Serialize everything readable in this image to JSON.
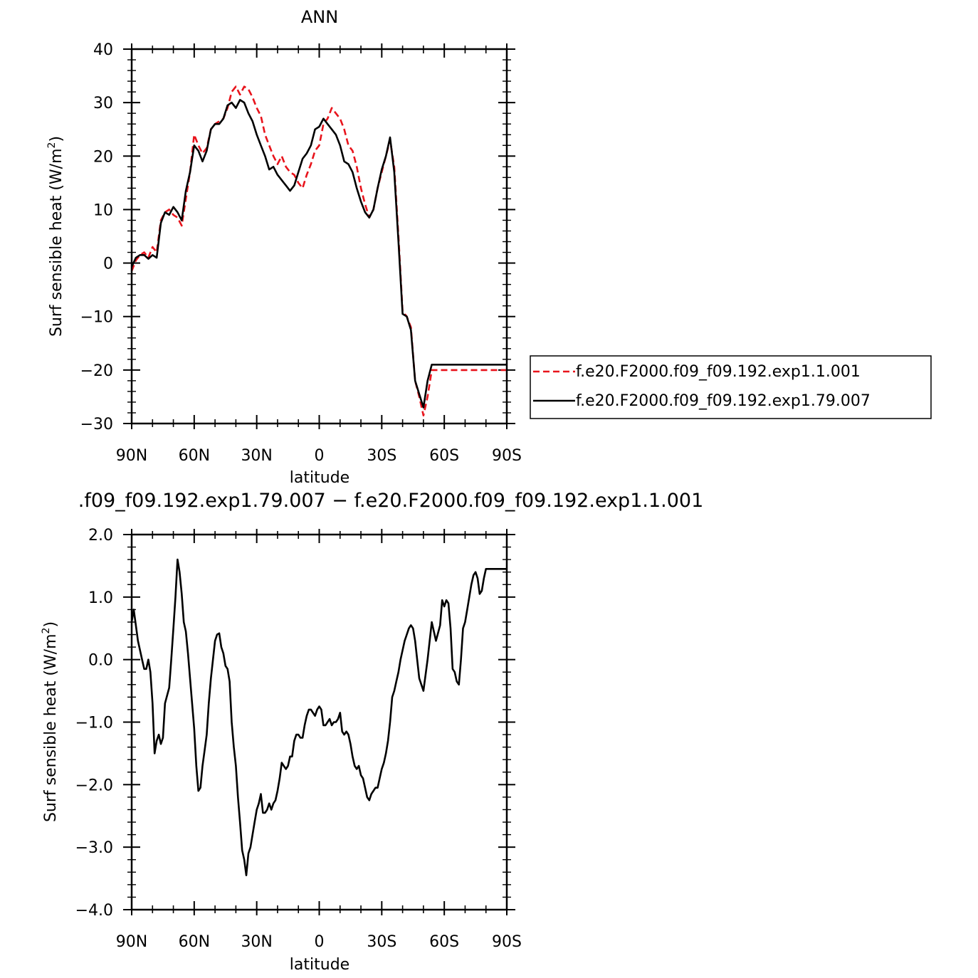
{
  "chart_data": [
    {
      "type": "line",
      "title": "ANN",
      "xlabel": "latitude",
      "ylabel": "Surf sensible heat (W/m²)",
      "ylabel_main": "Surf sensible heat (W/m",
      "ylabel_sup": "2",
      "ylabel_close": ")",
      "xlim": [
        90,
        -90
      ],
      "ylim": [
        -30,
        40
      ],
      "x_ticks": [
        90,
        60,
        30,
        0,
        -30,
        -60,
        -90
      ],
      "x_tick_labels": [
        "90N",
        "60N",
        "30N",
        "0",
        "30S",
        "60S",
        "90S"
      ],
      "y_ticks": [
        -30,
        -20,
        -10,
        0,
        10,
        20,
        30,
        40
      ],
      "y_tick_labels": [
        "−30",
        "−20",
        "−10",
        "0",
        "10",
        "20",
        "30",
        "40"
      ],
      "legend_position": "right",
      "series": [
        {
          "name": "f.e20.F2000.f09_f09.192.exp1.1.001",
          "color": "#e8141c",
          "dash": "dashed",
          "x": [
            90,
            88,
            86,
            84,
            82,
            80,
            78,
            76,
            74,
            72,
            70,
            68,
            66,
            64,
            62,
            60,
            58,
            56,
            54,
            52,
            50,
            48,
            46,
            44,
            42,
            40,
            38,
            36,
            34,
            32,
            30,
            28,
            26,
            24,
            22,
            20,
            18,
            16,
            14,
            12,
            10,
            8,
            6,
            4,
            2,
            0,
            -2,
            -4,
            -6,
            -8,
            -10,
            -12,
            -14,
            -16,
            -18,
            -20,
            -22,
            -24,
            -26,
            -28,
            -30,
            -32,
            -34,
            -36,
            -38,
            -40,
            -42,
            -44,
            -46,
            -48,
            -50,
            -52,
            -54,
            -56,
            -58,
            -60,
            -62,
            -64,
            -66,
            -68,
            -70,
            -72,
            -74,
            -76,
            -78,
            -80,
            -82,
            -84,
            -86,
            -88,
            -90
          ],
          "y": [
            -1.5,
            0.5,
            1.5,
            2.0,
            1.0,
            3.0,
            2.0,
            8.0,
            9.5,
            10.0,
            9.0,
            8.5,
            7.0,
            12.0,
            17.0,
            24.0,
            22.0,
            20.5,
            21.5,
            25.0,
            26.0,
            26.5,
            27.0,
            29.0,
            32.0,
            33.0,
            31.5,
            33.0,
            32.5,
            31.0,
            29.0,
            27.5,
            24.0,
            22.0,
            20.0,
            18.5,
            20.0,
            18.0,
            17.0,
            16.5,
            15.0,
            14.0,
            16.5,
            18.5,
            21.0,
            22.0,
            26.0,
            27.0,
            29.0,
            28.0,
            27.0,
            25.0,
            22.0,
            21.0,
            18.0,
            14.0,
            11.0,
            8.5,
            10.0,
            14.0,
            17.0,
            20.0,
            23.0,
            18.0,
            5.0,
            -9.0,
            -10.0,
            -12.0,
            -22.0,
            -25.0,
            -28.5,
            -25.0,
            -20.0,
            -20.0,
            -20.0,
            -20.0,
            -20.0,
            -20.0,
            -20.0,
            -20.0,
            -20.0,
            -20.0,
            -20.0,
            -20.0,
            -20.0,
            -20.0,
            -20.0,
            -20.0,
            -20.0,
            -20.0,
            -20.0
          ]
        },
        {
          "name": "f.e20.F2000.f09_f09.192.exp1.79.007",
          "color": "#000000",
          "dash": "solid",
          "x": [
            90,
            88,
            86,
            84,
            82,
            80,
            78,
            76,
            74,
            72,
            70,
            68,
            66,
            64,
            62,
            60,
            58,
            56,
            54,
            52,
            50,
            48,
            46,
            44,
            42,
            40,
            38,
            36,
            34,
            32,
            30,
            28,
            26,
            24,
            22,
            20,
            18,
            16,
            14,
            12,
            10,
            8,
            6,
            4,
            2,
            0,
            -2,
            -4,
            -6,
            -8,
            -10,
            -12,
            -14,
            -16,
            -18,
            -20,
            -22,
            -24,
            -26,
            -28,
            -30,
            -32,
            -34,
            -36,
            -38,
            -40,
            -42,
            -44,
            -46,
            -48,
            -50,
            -52,
            -54,
            -56,
            -58,
            -60,
            -62,
            -64,
            -66,
            -68,
            -70,
            -72,
            -74,
            -76,
            -78,
            -80,
            -82,
            -84,
            -86,
            -88,
            -90
          ],
          "y": [
            -0.7,
            1.0,
            1.5,
            1.5,
            0.8,
            1.5,
            1.0,
            7.5,
            9.5,
            9.0,
            10.5,
            9.5,
            8.0,
            13.5,
            17.0,
            22.0,
            21.0,
            19.0,
            21.0,
            25.0,
            26.0,
            26.0,
            27.0,
            29.5,
            30.0,
            29.0,
            30.5,
            30.0,
            28.0,
            26.5,
            24.0,
            22.0,
            20.0,
            17.5,
            18.0,
            16.5,
            15.5,
            14.5,
            13.5,
            14.5,
            17.0,
            19.5,
            20.5,
            22.0,
            25.0,
            25.5,
            27.0,
            26.0,
            25.0,
            24.0,
            22.0,
            19.0,
            18.5,
            17.0,
            14.0,
            11.5,
            9.5,
            8.5,
            10.0,
            14.0,
            17.5,
            20.0,
            23.5,
            17.0,
            4.0,
            -9.5,
            -10.0,
            -12.5,
            -22.0,
            -24.5,
            -27.0,
            -22.0,
            -19.0,
            -19.0,
            -19.0,
            -19.0,
            -19.0,
            -19.0,
            -19.0,
            -19.0,
            -19.0,
            -19.0,
            -19.0,
            -19.0,
            -19.0,
            -19.0,
            -19.0,
            -19.0,
            -19.0,
            -19.0,
            -19.0
          ]
        }
      ]
    },
    {
      "type": "line",
      "title": ".f09_f09.192.exp1.79.007 − f.e20.F2000.f09_f09.192.exp1.1.001",
      "xlabel": "latitude",
      "ylabel": "Surf sensible heat (W/m²)",
      "ylabel_main": "Surf sensible heat (W/m",
      "ylabel_sup": "2",
      "ylabel_close": ")",
      "xlim": [
        90,
        -90
      ],
      "ylim": [
        -4,
        2
      ],
      "x_ticks": [
        90,
        60,
        30,
        0,
        -30,
        -60,
        -90
      ],
      "x_tick_labels": [
        "90N",
        "60N",
        "30N",
        "0",
        "30S",
        "60S",
        "90S"
      ],
      "y_ticks": [
        -4,
        -3,
        -2,
        -1,
        0,
        1,
        2
      ],
      "y_tick_labels": [
        "−4.0",
        "−3.0",
        "−2.0",
        "−1.0",
        "0.0",
        "1.0",
        "2.0"
      ],
      "series": [
        {
          "color": "#000000",
          "dash": "solid",
          "x": [
            90,
            89,
            87,
            85,
            84,
            83,
            82,
            81,
            80,
            79,
            78,
            77,
            76,
            75,
            74,
            72,
            71,
            70,
            69,
            68,
            67,
            66,
            65,
            64,
            63,
            62,
            61,
            60,
            59,
            58,
            57,
            56,
            55,
            54,
            53,
            52,
            51,
            50,
            49,
            48,
            47,
            46,
            45,
            44,
            43,
            42,
            41,
            40,
            39,
            38,
            37,
            36,
            35,
            34,
            33,
            32,
            31,
            30,
            29,
            28,
            27,
            26,
            25,
            24,
            23,
            22,
            21,
            20,
            19,
            18,
            17,
            16,
            15,
            14,
            13,
            12,
            11,
            10,
            9,
            8,
            7,
            6,
            5,
            4,
            3,
            2,
            1,
            0,
            -1,
            -2,
            -3,
            -4,
            -5,
            -6,
            -7,
            -8,
            -9,
            -10,
            -11,
            -12,
            -13,
            -14,
            -15,
            -16,
            -17,
            -18,
            -19,
            -20,
            -21,
            -22,
            -23,
            -24,
            -25,
            -26,
            -27,
            -28,
            -29,
            -30,
            -31,
            -32,
            -33,
            -34,
            -35,
            -36,
            -37,
            -38,
            -39,
            -40,
            -41,
            -42,
            -43,
            -44,
            -45,
            -46,
            -48,
            -50,
            -52,
            -54,
            -56,
            -58,
            -59,
            -60,
            -61,
            -62,
            -63,
            -64,
            -65,
            -66,
            -67,
            -68,
            -69,
            -70,
            -71,
            -72,
            -73,
            -74,
            -75,
            -76,
            -77,
            -78,
            -79,
            -80,
            -81,
            -82,
            -83,
            -84,
            -85,
            -86,
            -87,
            -88,
            -89,
            -90
          ],
          "y": [
            0.6,
            0.8,
            0.3,
            0.0,
            -0.15,
            -0.15,
            0.0,
            -0.2,
            -0.7,
            -1.5,
            -1.3,
            -1.2,
            -1.35,
            -1.25,
            -0.7,
            -0.45,
            0.0,
            0.5,
            1.0,
            1.6,
            1.4,
            1.05,
            0.6,
            0.45,
            0.1,
            -0.3,
            -0.7,
            -1.1,
            -1.7,
            -2.1,
            -2.05,
            -1.7,
            -1.45,
            -1.2,
            -0.7,
            -0.3,
            0.0,
            0.3,
            0.4,
            0.42,
            0.2,
            0.1,
            -0.1,
            -0.15,
            -0.35,
            -1.0,
            -1.4,
            -1.7,
            -2.2,
            -2.6,
            -3.05,
            -3.2,
            -3.45,
            -3.1,
            -3.0,
            -2.8,
            -2.6,
            -2.4,
            -2.3,
            -2.15,
            -2.45,
            -2.45,
            -2.4,
            -2.3,
            -2.4,
            -2.3,
            -2.25,
            -2.1,
            -1.9,
            -1.65,
            -1.7,
            -1.75,
            -1.7,
            -1.55,
            -1.55,
            -1.3,
            -1.2,
            -1.2,
            -1.25,
            -1.25,
            -1.05,
            -0.9,
            -0.8,
            -0.8,
            -0.85,
            -0.9,
            -0.8,
            -0.75,
            -0.8,
            -1.05,
            -1.05,
            -1.0,
            -0.95,
            -1.05,
            -1.0,
            -1.0,
            -0.95,
            -0.85,
            -1.15,
            -1.2,
            -1.15,
            -1.2,
            -1.35,
            -1.55,
            -1.7,
            -1.75,
            -1.7,
            -1.85,
            -1.9,
            -2.05,
            -2.2,
            -2.25,
            -2.15,
            -2.1,
            -2.05,
            -2.05,
            -1.9,
            -1.75,
            -1.65,
            -1.5,
            -1.3,
            -1.0,
            -0.6,
            -0.5,
            -0.35,
            -0.2,
            0.0,
            0.15,
            0.3,
            0.4,
            0.5,
            0.55,
            0.5,
            0.3,
            -0.3,
            -0.5,
            0.0,
            0.6,
            0.3,
            0.55,
            0.95,
            0.85,
            0.95,
            0.9,
            0.5,
            -0.15,
            -0.2,
            -0.35,
            -0.4,
            0.0,
            0.5,
            0.6,
            0.8,
            1.0,
            1.2,
            1.35,
            1.4,
            1.3,
            1.05,
            1.1,
            1.3,
            1.45,
            1.45,
            1.45,
            1.45,
            1.45,
            1.45,
            1.45,
            1.45,
            1.45,
            1.45,
            1.45
          ]
        }
      ]
    }
  ]
}
